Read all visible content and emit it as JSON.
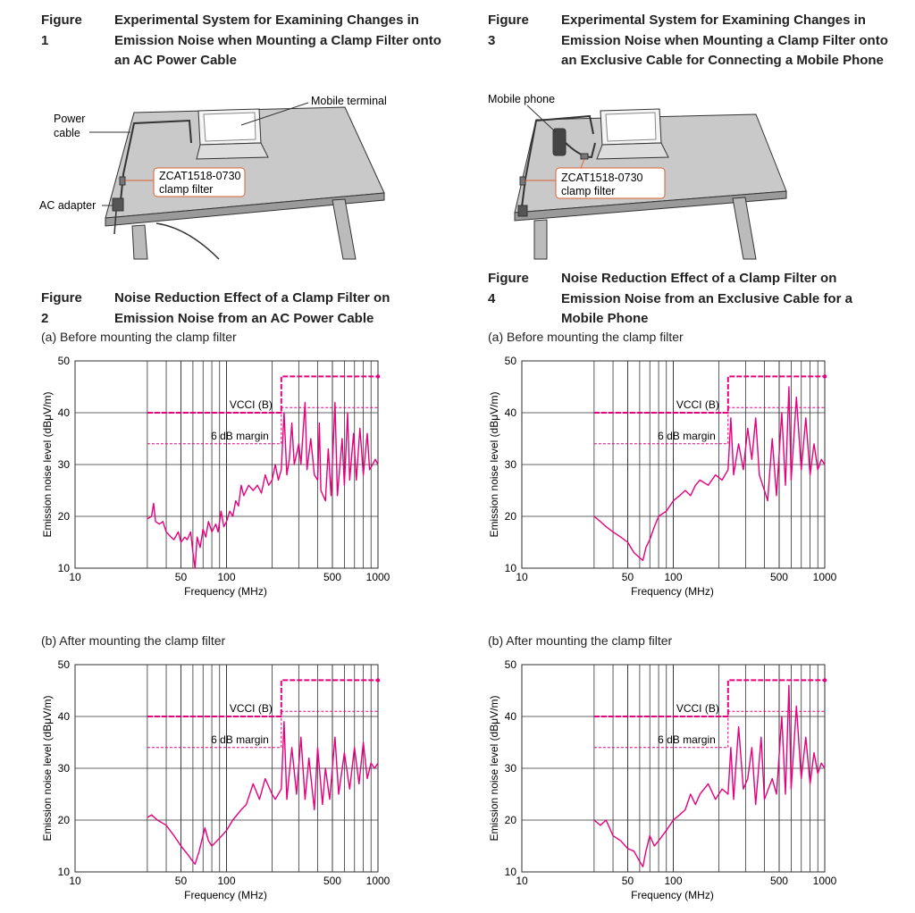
{
  "figures": [
    {
      "label": "Figure 1",
      "title": "Experimental System for Examining Changes in Emission Noise when Mounting a Clamp Filter onto an AC Power Cable"
    },
    {
      "label": "Figure 2",
      "title": "Noise Reduction Effect of a Clamp Filter on Emission Noise from an AC Power Cable"
    },
    {
      "label": "Figure 3",
      "title": "Experimental System for Examining Changes in Emission Noise when Mounting a Clamp Filter onto an Exclusive Cable for Connecting a Mobile Phone"
    },
    {
      "label": "Figure 4",
      "title": "Noise Reduction Effect of a Clamp Filter on Emission Noise from an Exclusive Cable for a Mobile Phone"
    }
  ],
  "illustrations": [
    {
      "labels": [
        "Power",
        "cable",
        "Mobile terminal",
        "ZCAT1518-0730",
        "clamp filter",
        "AC adapter"
      ]
    },
    {
      "labels": [
        "Mobile phone",
        "ZCAT1518-0730",
        "clamp filter"
      ]
    }
  ],
  "chart_data": [
    {
      "type": "line",
      "subtitle": "(a) Before mounting the clamp filter",
      "xlabel": "Frequency (MHz)",
      "ylabel": "Emission noise level (dBμV/m)",
      "x_scale": "log",
      "xlim": [
        10,
        1000
      ],
      "ylim": [
        10,
        50
      ],
      "xticks": [
        10,
        50,
        100,
        500,
        1000
      ],
      "yticks": [
        10,
        20,
        30,
        40,
        50
      ],
      "xgrid_start": 30,
      "grid": true,
      "annotations": [
        "VCCI (B)",
        "6 dB margin"
      ],
      "series": [
        {
          "color": "#e6007e",
          "linewidth": 1.4,
          "linestyle": "solid",
          "x": [
            30,
            32,
            33,
            34,
            36,
            38,
            40,
            43,
            45,
            48,
            50,
            53,
            55,
            58,
            60,
            62,
            64,
            67,
            70,
            73,
            76,
            80,
            85,
            88,
            92,
            96,
            100,
            105,
            110,
            115,
            120,
            125,
            130,
            140,
            150,
            160,
            170,
            180,
            190,
            200,
            210,
            220,
            230,
            240,
            250,
            260,
            270,
            280,
            300,
            310,
            330,
            340,
            360,
            380,
            400,
            410,
            420,
            450,
            470,
            490,
            520,
            540,
            580,
            600,
            630,
            650,
            690,
            720,
            760,
            800,
            850,
            880,
            920,
            960,
            1000
          ],
          "values": [
            19.5,
            20,
            22.5,
            19,
            18.5,
            19,
            17,
            16,
            15.5,
            17,
            15,
            16,
            15.5,
            17,
            13,
            10,
            16,
            14,
            17.5,
            16,
            19,
            17,
            18.5,
            17,
            21,
            18,
            19,
            21,
            20,
            23,
            22,
            26,
            24,
            26,
            25,
            26,
            24.5,
            28,
            26,
            27,
            30,
            27,
            29,
            40,
            28,
            31,
            38,
            30,
            34,
            30,
            42,
            29,
            35,
            28,
            27,
            38,
            25,
            23,
            33,
            24,
            42,
            24,
            35,
            26,
            40,
            27,
            36,
            27,
            37,
            28,
            36,
            29,
            30,
            31,
            30
          ]
        },
        {
          "color": "#e6007e",
          "linewidth": 2,
          "linestyle": "dashed",
          "x": [
            30,
            230,
            230,
            1000
          ],
          "values": [
            40,
            40,
            47,
            47
          ]
        },
        {
          "color": "#e6007e",
          "linewidth": 1,
          "linestyle": "dashed",
          "x": [
            30,
            230,
            230,
            1000
          ],
          "values": [
            34,
            34,
            41,
            41
          ]
        }
      ]
    },
    {
      "type": "line",
      "subtitle": "(b) After mounting the clamp filter",
      "xlabel": "Frequency (MHz)",
      "ylabel": "Emission noise level (dBμV/m)",
      "x_scale": "log",
      "xlim": [
        10,
        1000
      ],
      "ylim": [
        10,
        50
      ],
      "xticks": [
        10,
        50,
        100,
        500,
        1000
      ],
      "yticks": [
        10,
        20,
        30,
        40,
        50
      ],
      "xgrid_start": 30,
      "grid": true,
      "annotations": [
        "VCCI (B)",
        "6 dB margin"
      ],
      "series": [
        {
          "color": "#e6007e",
          "linewidth": 1.4,
          "linestyle": "solid",
          "x": [
            30,
            32,
            35,
            40,
            45,
            50,
            55,
            60,
            62,
            66,
            72,
            76,
            80,
            90,
            100,
            110,
            125,
            135,
            150,
            165,
            180,
            200,
            210,
            230,
            240,
            250,
            270,
            290,
            310,
            330,
            350,
            380,
            400,
            430,
            450,
            480,
            520,
            550,
            600,
            650,
            700,
            750,
            800,
            850,
            900,
            950,
            1000
          ],
          "values": [
            20.5,
            21,
            20,
            19,
            17,
            15,
            13.5,
            12,
            11.5,
            14,
            18.5,
            16,
            15,
            16.5,
            18,
            20,
            22,
            23,
            27,
            24,
            28,
            25,
            24,
            26,
            39,
            24,
            34,
            25,
            36,
            24,
            32,
            22,
            34,
            23,
            30,
            24,
            36,
            25,
            33,
            26,
            34,
            27,
            35,
            28,
            31,
            30,
            31
          ]
        },
        {
          "color": "#e6007e",
          "linewidth": 2,
          "linestyle": "dashed",
          "x": [
            30,
            230,
            230,
            1000
          ],
          "values": [
            40,
            40,
            47,
            47
          ]
        },
        {
          "color": "#e6007e",
          "linewidth": 1,
          "linestyle": "dashed",
          "x": [
            30,
            230,
            230,
            1000
          ],
          "values": [
            34,
            34,
            41,
            41
          ]
        }
      ]
    },
    {
      "type": "line",
      "subtitle": "(a) Before mounting the clamp filter",
      "xlabel": "Frequency (MHz)",
      "ylabel": "Emission noise level (dBμV/m)",
      "x_scale": "log",
      "xlim": [
        10,
        1000
      ],
      "ylim": [
        10,
        50
      ],
      "xticks": [
        10,
        50,
        100,
        500,
        1000
      ],
      "yticks": [
        10,
        20,
        30,
        40,
        50
      ],
      "xgrid_start": 30,
      "grid": true,
      "annotations": [
        "VCCI (B)",
        "6 dB margin"
      ],
      "series": [
        {
          "color": "#e6007e",
          "linewidth": 1.4,
          "linestyle": "solid",
          "x": [
            30,
            33,
            36,
            40,
            45,
            50,
            55,
            60,
            63,
            66,
            70,
            75,
            80,
            90,
            100,
            110,
            120,
            130,
            140,
            150,
            170,
            190,
            210,
            230,
            240,
            250,
            270,
            290,
            310,
            330,
            350,
            370,
            400,
            420,
            450,
            480,
            520,
            550,
            580,
            600,
            650,
            700,
            750,
            800,
            850,
            900,
            950,
            1000
          ],
          "values": [
            20,
            19,
            18,
            17,
            16,
            15,
            13,
            12,
            11.5,
            14,
            15.5,
            18,
            20,
            21,
            23,
            24,
            25,
            24,
            26,
            27,
            26,
            28,
            27,
            29,
            39,
            28,
            34,
            29,
            37,
            31,
            39,
            28,
            25,
            23,
            35,
            24,
            40,
            26,
            45,
            27,
            43,
            29,
            39,
            28,
            34,
            29,
            31,
            30
          ]
        },
        {
          "color": "#e6007e",
          "linewidth": 2,
          "linestyle": "dashed",
          "x": [
            30,
            230,
            230,
            1000
          ],
          "values": [
            40,
            40,
            47,
            47
          ]
        },
        {
          "color": "#e6007e",
          "linewidth": 1,
          "linestyle": "dashed",
          "x": [
            30,
            230,
            230,
            1000
          ],
          "values": [
            34,
            34,
            41,
            41
          ]
        }
      ]
    },
    {
      "type": "line",
      "subtitle": "(b) After mounting the clamp filter",
      "xlabel": "Frequency (MHz)",
      "ylabel": "Emission noise level (dBμV/m)",
      "x_scale": "log",
      "xlim": [
        10,
        1000
      ],
      "ylim": [
        10,
        50
      ],
      "xticks": [
        10,
        50,
        100,
        500,
        1000
      ],
      "yticks": [
        10,
        20,
        30,
        40,
        50
      ],
      "xgrid_start": 30,
      "grid": true,
      "annotations": [
        "VCCI (B)",
        "6 dB margin"
      ],
      "series": [
        {
          "color": "#e6007e",
          "linewidth": 1.4,
          "linestyle": "solid",
          "x": [
            30,
            33,
            36,
            40,
            45,
            50,
            55,
            60,
            63,
            66,
            70,
            75,
            80,
            90,
            100,
            110,
            120,
            130,
            140,
            150,
            170,
            190,
            210,
            230,
            240,
            250,
            270,
            290,
            310,
            330,
            350,
            380,
            400,
            450,
            480,
            520,
            550,
            580,
            600,
            650,
            700,
            750,
            800,
            850,
            900,
            950,
            1000
          ],
          "values": [
            20,
            19,
            20,
            17,
            16,
            14.5,
            14,
            12,
            11,
            14,
            17,
            15,
            16,
            18,
            20,
            21,
            22,
            25,
            23,
            25,
            27,
            24,
            26,
            25,
            34,
            24,
            38,
            26,
            28,
            34,
            23,
            36,
            24,
            28,
            25,
            40,
            25,
            46,
            26,
            42,
            28,
            36,
            27,
            33,
            29,
            31,
            30
          ]
        },
        {
          "color": "#e6007e",
          "linewidth": 2,
          "linestyle": "dashed",
          "x": [
            30,
            230,
            230,
            1000
          ],
          "values": [
            40,
            40,
            47,
            47
          ]
        },
        {
          "color": "#e6007e",
          "linewidth": 1,
          "linestyle": "dashed",
          "x": [
            30,
            230,
            230,
            1000
          ],
          "values": [
            34,
            34,
            41,
            41
          ]
        }
      ]
    }
  ]
}
